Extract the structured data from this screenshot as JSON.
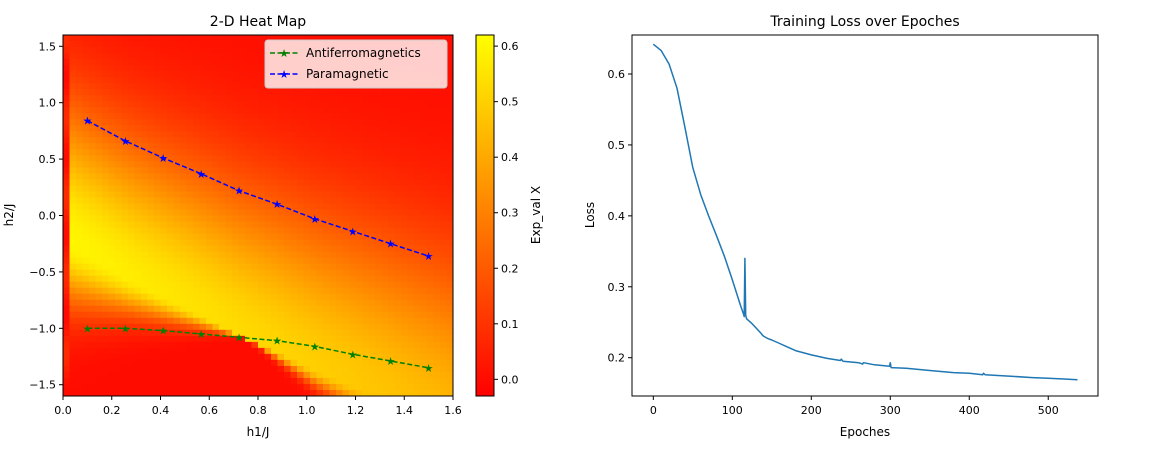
{
  "chart_data": [
    {
      "type": "heatmap",
      "title": "2-D Heat Map",
      "xlabel": "h1/J",
      "ylabel": "h2/J",
      "xlim": [
        0.0,
        1.6
      ],
      "ylim": [
        -1.6,
        1.6
      ],
      "xticks": [
        0.0,
        0.2,
        0.4,
        0.6,
        0.8,
        1.0,
        1.2,
        1.4,
        1.6
      ],
      "xtick_labels": [
        "0.0",
        "0.2",
        "0.4",
        "0.6",
        "0.8",
        "1.0",
        "1.2",
        "1.4",
        "1.6"
      ],
      "yticks": [
        -1.5,
        -1.0,
        -0.5,
        0.0,
        0.5,
        1.0,
        1.5
      ],
      "ytick_labels": [
        "−1.5",
        "−1.0",
        "−0.5",
        "0.0",
        "0.5",
        "1.0",
        "1.5"
      ],
      "colormap": "autumn",
      "colorbar": {
        "label": "Exp_val X",
        "range": [
          -0.03,
          0.62
        ],
        "ticks": [
          0.0,
          0.1,
          0.2,
          0.3,
          0.4,
          0.5,
          0.6
        ],
        "tick_labels": [
          "0.0",
          "0.1",
          "0.2",
          "0.3",
          "0.4",
          "0.5",
          "0.6"
        ]
      },
      "legend": "top-right",
      "series": [
        {
          "name": "Antiferromagnetics",
          "color": "#008000",
          "style": "dashed-star",
          "x": [
            0.1,
            0.256,
            0.411,
            0.567,
            0.722,
            0.878,
            1.033,
            1.189,
            1.344,
            1.5
          ],
          "y": [
            -1.0,
            -1.0,
            -1.02,
            -1.05,
            -1.08,
            -1.11,
            -1.16,
            -1.23,
            -1.29,
            -1.35
          ]
        },
        {
          "name": "Paramagnetic",
          "color": "#0000ff",
          "style": "dashed-star",
          "x": [
            0.1,
            0.256,
            0.411,
            0.567,
            0.722,
            0.878,
            1.033,
            1.189,
            1.344,
            1.5
          ],
          "y": [
            0.84,
            0.66,
            0.51,
            0.37,
            0.22,
            0.1,
            -0.03,
            -0.14,
            -0.25,
            -0.36
          ]
        }
      ]
    },
    {
      "type": "line",
      "title": "Training Loss over Epoches",
      "xlabel": "Epoches",
      "ylabel": "Loss",
      "xlim": [
        -27,
        563
      ],
      "ylim": [
        0.146,
        0.655
      ],
      "xticks": [
        0,
        100,
        200,
        300,
        400,
        500
      ],
      "xtick_labels": [
        "0",
        "100",
        "200",
        "300",
        "400",
        "500"
      ],
      "yticks": [
        0.2,
        0.3,
        0.4,
        0.5,
        0.6
      ],
      "ytick_labels": [
        "0.2",
        "0.3",
        "0.4",
        "0.5",
        "0.6"
      ],
      "series": [
        {
          "color": "#1f77b4",
          "x": [
            0,
            10,
            20,
            30,
            40,
            50,
            60,
            70,
            80,
            90,
            100,
            110,
            114,
            115,
            116,
            117,
            118,
            125,
            130,
            135,
            136,
            138,
            140,
            145,
            150,
            160,
            170,
            180,
            200,
            220,
            237,
            238,
            240,
            260,
            265,
            266,
            280,
            299,
            300,
            301,
            320,
            350,
            380,
            400,
            417,
            418,
            420,
            450,
            480,
            500,
            520,
            537
          ],
          "y": [
            0.642,
            0.633,
            0.614,
            0.58,
            0.525,
            0.468,
            0.43,
            0.4,
            0.372,
            0.343,
            0.31,
            0.275,
            0.262,
            0.258,
            0.34,
            0.26,
            0.255,
            0.248,
            0.242,
            0.236,
            0.235,
            0.232,
            0.23,
            0.227,
            0.225,
            0.22,
            0.215,
            0.21,
            0.204,
            0.199,
            0.196,
            0.198,
            0.195,
            0.193,
            0.191,
            0.193,
            0.19,
            0.188,
            0.193,
            0.186,
            0.185,
            0.182,
            0.179,
            0.178,
            0.176,
            0.178,
            0.176,
            0.174,
            0.172,
            0.171,
            0.17,
            0.169
          ]
        }
      ]
    }
  ]
}
